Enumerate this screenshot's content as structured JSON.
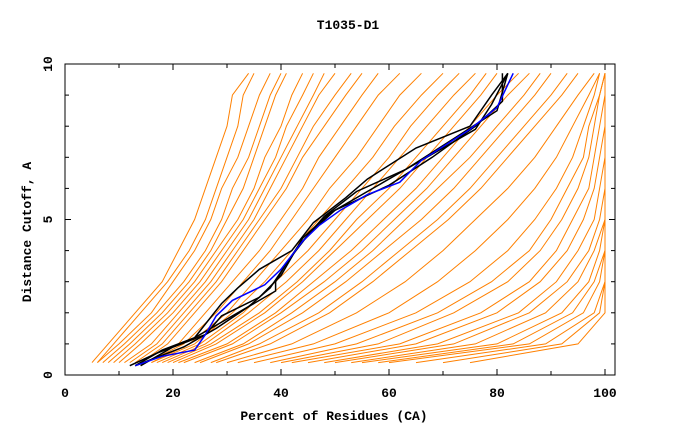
{
  "chart_data": {
    "type": "line",
    "title": "T1035-D1",
    "xlabel": "Percent of Residues (CA)",
    "ylabel": "Distance Cutoff, A",
    "xlim": [
      0,
      100
    ],
    "ylim": [
      0,
      10
    ],
    "x_ticks": [
      "0",
      "20",
      "40",
      "60",
      "80",
      "100"
    ],
    "y_ticks": [
      "0",
      "5",
      "10"
    ],
    "grid": false,
    "colors": {
      "other_models": "#ff8000",
      "highlight_models": "#000000",
      "best_model": "#0000ff"
    },
    "y_levels": [
      0.4,
      1,
      2,
      3,
      4,
      5,
      6,
      7,
      8,
      9,
      9.7
    ],
    "other_models_x_at_levels": [
      [
        5,
        8,
        13,
        18,
        21,
        24,
        26,
        28,
        30,
        31,
        34
      ],
      [
        6,
        9,
        14,
        19,
        23,
        26,
        28,
        30,
        32,
        33,
        35
      ],
      [
        6,
        10,
        16,
        20,
        24,
        27,
        29,
        32,
        34,
        36,
        38
      ],
      [
        7,
        11,
        17,
        22,
        26,
        29,
        31,
        34,
        36,
        38,
        40
      ],
      [
        8,
        12,
        18,
        23,
        27,
        30,
        33,
        35,
        37,
        39,
        41
      ],
      [
        9,
        13,
        19,
        24,
        28,
        32,
        35,
        37,
        40,
        42,
        44
      ],
      [
        10,
        14,
        20,
        25,
        29,
        33,
        36,
        39,
        41,
        44,
        46
      ],
      [
        11,
        16,
        21,
        26,
        30,
        34,
        37,
        40,
        43,
        46,
        48
      ],
      [
        12,
        17,
        22,
        27,
        31,
        35,
        38,
        41,
        44,
        47,
        50
      ],
      [
        13,
        18,
        23,
        28,
        32,
        36,
        40,
        43,
        46,
        50,
        53
      ],
      [
        14,
        19,
        24,
        29,
        33,
        37,
        41,
        44,
        48,
        52,
        55
      ],
      [
        15,
        21,
        26,
        31,
        36,
        40,
        44,
        47,
        51,
        55,
        58
      ],
      [
        15,
        22,
        28,
        33,
        38,
        42,
        46,
        50,
        54,
        58,
        62
      ],
      [
        16,
        23,
        30,
        35,
        40,
        45,
        49,
        54,
        58,
        62,
        66
      ],
      [
        16,
        24,
        31,
        37,
        42,
        47,
        52,
        57,
        61,
        66,
        70
      ],
      [
        17,
        25,
        33,
        39,
        45,
        50,
        55,
        60,
        64,
        69,
        73
      ],
      [
        18,
        26,
        34,
        41,
        47,
        52,
        57,
        62,
        67,
        72,
        76
      ],
      [
        19,
        27,
        36,
        43,
        49,
        54,
        60,
        65,
        70,
        75,
        78
      ],
      [
        20,
        28,
        37,
        44,
        50,
        56,
        62,
        67,
        72,
        77,
        80
      ],
      [
        21,
        30,
        39,
        46,
        53,
        59,
        65,
        70,
        75,
        80,
        84
      ],
      [
        22,
        31,
        40,
        48,
        55,
        61,
        67,
        72,
        77,
        82,
        86
      ],
      [
        24,
        33,
        42,
        50,
        57,
        63,
        69,
        75,
        80,
        85,
        88
      ],
      [
        25,
        34,
        44,
        52,
        59,
        66,
        72,
        77,
        82,
        87,
        90
      ],
      [
        27,
        36,
        47,
        55,
        62,
        69,
        75,
        80,
        85,
        90,
        93
      ],
      [
        28,
        38,
        49,
        57,
        64,
        71,
        77,
        82,
        87,
        92,
        95
      ],
      [
        30,
        42,
        54,
        63,
        70,
        76,
        82,
        87,
        91,
        95,
        98
      ],
      [
        32,
        46,
        60,
        69,
        76,
        82,
        87,
        91,
        94,
        97,
        99
      ],
      [
        35,
        50,
        65,
        75,
        82,
        87,
        91,
        94,
        96,
        98,
        99
      ],
      [
        38,
        54,
        69,
        79,
        86,
        90,
        93,
        96,
        97,
        99,
        100
      ],
      [
        40,
        58,
        72,
        82,
        88,
        92,
        95,
        97,
        98,
        99,
        100
      ],
      [
        42,
        62,
        77,
        86,
        91,
        94,
        97,
        98,
        99,
        100,
        100
      ],
      [
        45,
        65,
        80,
        88,
        93,
        96,
        98,
        99,
        100,
        100,
        100
      ],
      [
        48,
        69,
        84,
        91,
        95,
        98,
        99,
        100,
        100,
        100,
        100
      ],
      [
        50,
        72,
        86,
        93,
        97,
        99,
        100,
        100,
        100,
        100,
        100
      ],
      [
        53,
        76,
        89,
        95,
        98,
        100,
        100,
        100,
        100,
        100,
        100
      ],
      [
        55,
        80,
        92,
        97,
        99,
        100,
        100,
        100,
        100,
        100,
        100
      ],
      [
        58,
        83,
        94,
        98,
        100,
        100,
        100,
        100,
        100,
        100,
        100
      ],
      [
        60,
        86,
        96,
        99,
        100,
        100,
        100,
        100,
        100,
        100,
        100
      ],
      [
        65,
        89,
        98,
        100,
        100,
        100,
        100,
        100,
        100,
        100,
        100
      ],
      [
        70,
        92,
        99,
        100,
        100,
        100,
        100,
        100,
        100,
        100,
        100
      ],
      [
        75,
        95,
        100,
        100,
        100,
        100,
        100,
        100,
        100,
        100,
        100
      ]
    ],
    "highlight_models": [
      [
        [
          13,
          0.3
        ],
        [
          18,
          0.8
        ],
        [
          24,
          1.2
        ],
        [
          29,
          2.3
        ],
        [
          32,
          2.8
        ],
        [
          36,
          3.4
        ],
        [
          42,
          4.0
        ],
        [
          46,
          4.9
        ],
        [
          52,
          5.7
        ],
        [
          56,
          6.3
        ],
        [
          65,
          7.3
        ],
        [
          75,
          8.0
        ],
        [
          79,
          9.0
        ],
        [
          82,
          9.7
        ]
      ],
      [
        [
          12,
          0.3
        ],
        [
          17,
          0.7
        ],
        [
          23,
          1.1
        ],
        [
          27,
          1.5
        ],
        [
          30,
          1.8
        ],
        [
          39,
          2.7
        ],
        [
          39,
          3.0
        ],
        [
          41,
          3.6
        ],
        [
          45,
          4.5
        ],
        [
          50,
          5.3
        ],
        [
          60,
          6.1
        ],
        [
          68,
          7.0
        ],
        [
          76,
          8.0
        ],
        [
          81,
          8.8
        ],
        [
          81,
          9.7
        ]
      ],
      [
        [
          13,
          0.3
        ],
        [
          22,
          0.9
        ],
        [
          28,
          1.5
        ],
        [
          34,
          2.2
        ],
        [
          38,
          2.8
        ],
        [
          43,
          4.1
        ],
        [
          48,
          5.1
        ],
        [
          54,
          5.9
        ],
        [
          63,
          6.6
        ],
        [
          72,
          7.6
        ],
        [
          80,
          8.5
        ],
        [
          82,
          9.7
        ]
      ],
      [
        [
          14,
          0.3
        ],
        [
          20,
          0.9
        ],
        [
          26,
          1.3
        ],
        [
          29,
          1.9
        ],
        [
          36,
          2.5
        ],
        [
          40,
          3.2
        ],
        [
          44,
          4.4
        ],
        [
          49,
          5.2
        ],
        [
          57,
          6.0
        ],
        [
          66,
          6.9
        ],
        [
          76,
          7.9
        ],
        [
          79,
          8.7
        ],
        [
          82,
          9.7
        ]
      ]
    ],
    "best_model": [
      [
        13,
        0.3
      ],
      [
        18,
        0.6
      ],
      [
        24,
        0.8
      ],
      [
        26,
        1.3
      ],
      [
        28,
        1.9
      ],
      [
        31,
        2.4
      ],
      [
        37,
        2.9
      ],
      [
        40,
        3.4
      ],
      [
        44,
        4.3
      ],
      [
        47,
        4.8
      ],
      [
        51,
        5.3
      ],
      [
        56,
        5.8
      ],
      [
        62,
        6.2
      ],
      [
        66,
        6.9
      ],
      [
        75,
        7.9
      ],
      [
        80,
        8.6
      ],
      [
        83,
        9.7
      ]
    ]
  }
}
